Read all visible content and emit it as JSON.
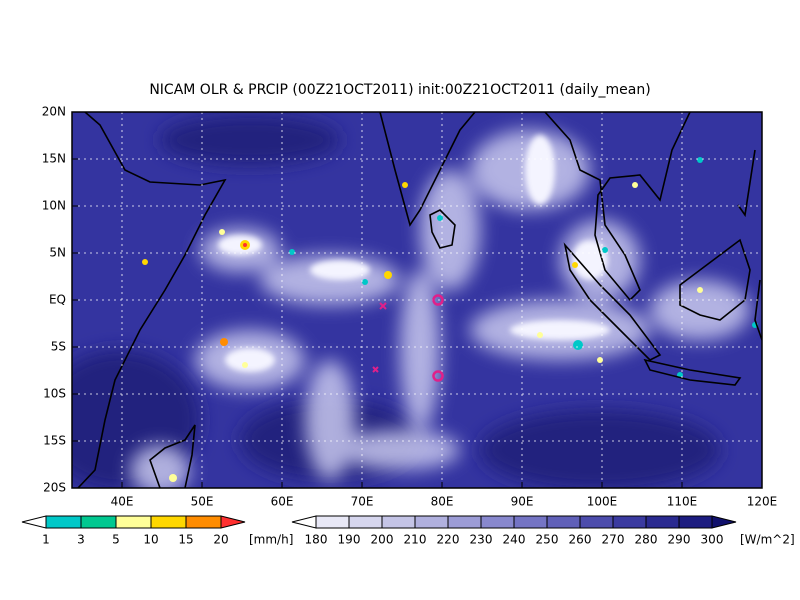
{
  "title": "NICAM OLR & PRCIP (00Z21OCT2011) init:00Z21OCT2011 (daily_mean)",
  "lat_labels": [
    "20N",
    "15N",
    "10N",
    "5N",
    "EQ",
    "5S",
    "10S",
    "15S",
    "20S"
  ],
  "lon_labels": [
    "40E",
    "50E",
    "60E",
    "70E",
    "80E",
    "90E",
    "100E",
    "110E",
    "120E"
  ],
  "precip_colorbar": {
    "labels": [
      "1",
      "3",
      "5",
      "10",
      "15",
      "20"
    ],
    "unit": "[mm/h]"
  },
  "olr_colorbar": {
    "labels": [
      "180",
      "190",
      "200",
      "210",
      "220",
      "230",
      "240",
      "250",
      "260",
      "270",
      "280",
      "290",
      "300"
    ],
    "unit": "[W/m^2]"
  }
}
